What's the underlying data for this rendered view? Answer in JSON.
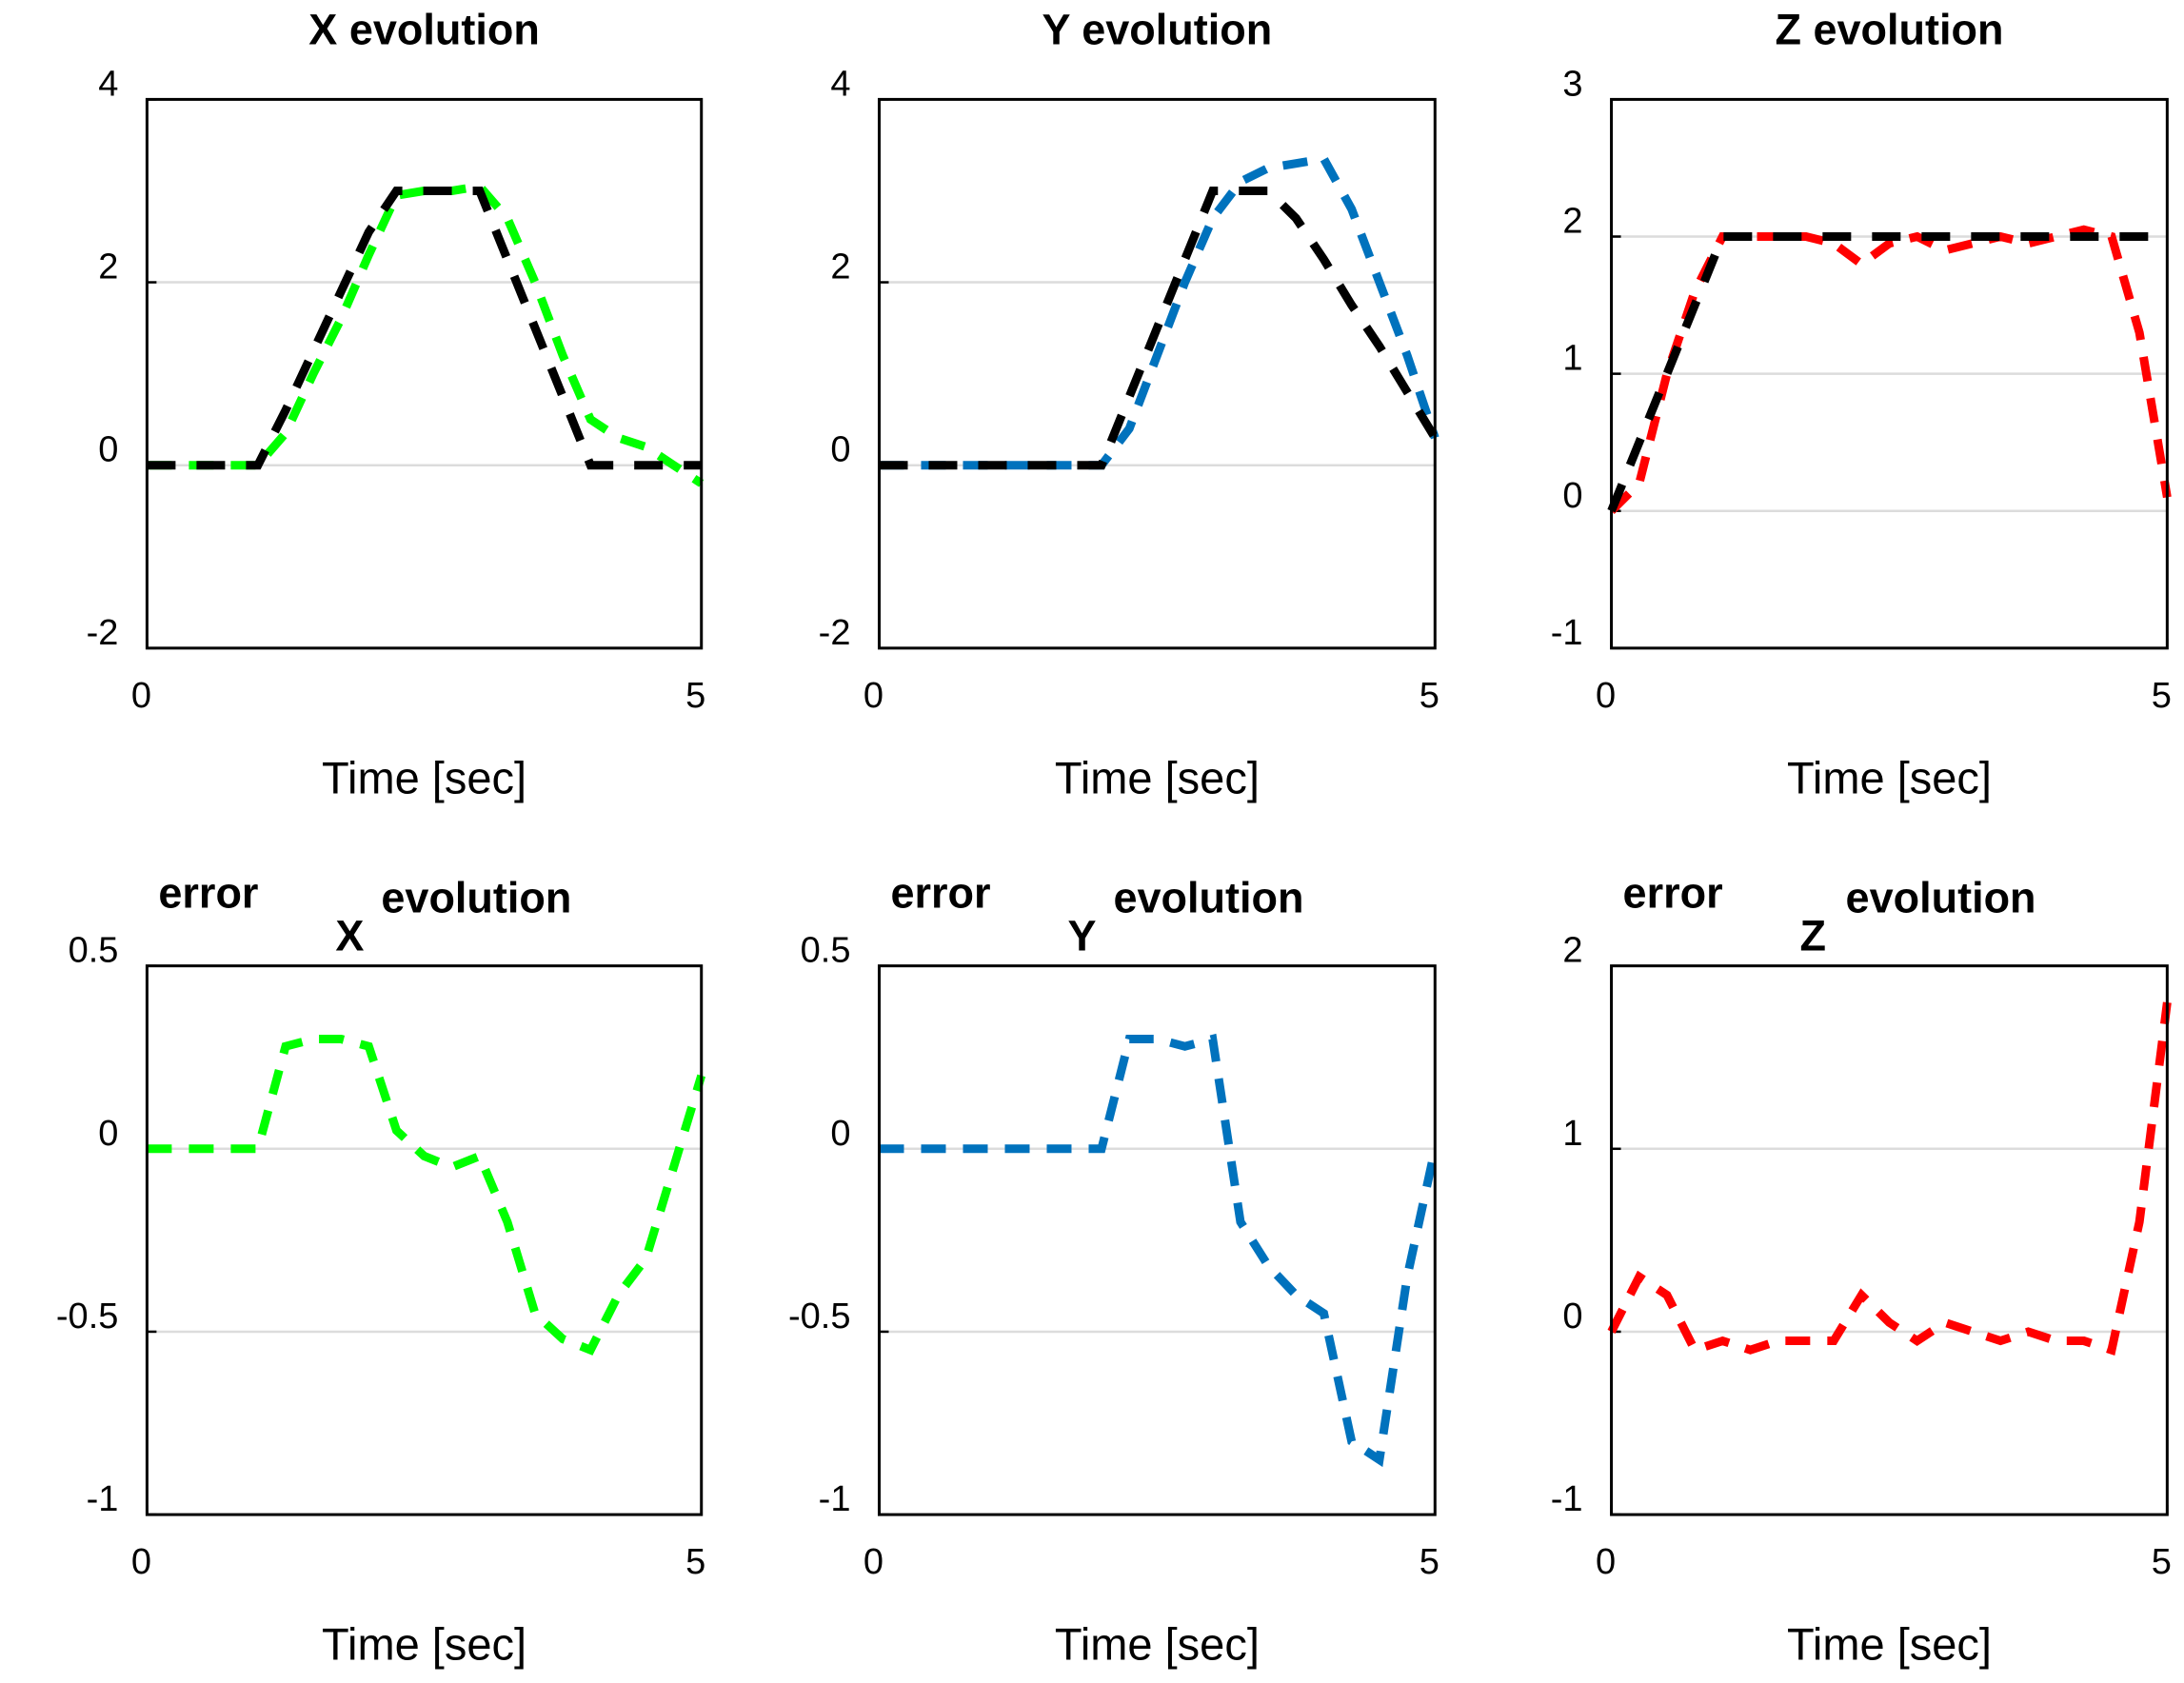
{
  "chart_data": [
    {
      "type": "line",
      "title": "X evolution",
      "xlabel": "Time [sec]",
      "x": [
        0,
        0.25,
        0.5,
        0.75,
        1,
        1.25,
        1.5,
        1.75,
        2,
        2.25,
        2.5,
        2.75,
        3,
        3.25,
        3.5,
        3.75,
        4,
        4.25,
        4.5,
        4.75,
        5
      ],
      "series": [
        {
          "color": "#00ff00",
          "values": [
            0,
            0,
            0,
            0,
            0,
            0.35,
            1.0,
            1.6,
            2.3,
            2.95,
            3.0,
            3.0,
            3.05,
            2.7,
            2.0,
            1.2,
            0.5,
            0.3,
            0.2,
            0,
            -0.2
          ]
        },
        {
          "color": "#000000",
          "values": [
            0,
            0,
            0,
            0,
            0,
            0.6,
            1.25,
            1.9,
            2.55,
            3,
            3,
            3,
            3,
            2.25,
            1.5,
            0.75,
            0,
            0,
            0,
            0,
            0
          ]
        }
      ],
      "xlim": [
        0,
        5
      ],
      "ylim": [
        -2,
        4
      ],
      "xticks": [
        0,
        5
      ],
      "yticks": [
        -2,
        0,
        2,
        4
      ],
      "grid": true
    },
    {
      "type": "line",
      "title": "Y evolution",
      "xlabel": "Time [sec]",
      "x": [
        0,
        0.25,
        0.5,
        0.75,
        1,
        1.25,
        1.5,
        1.75,
        2,
        2.25,
        2.5,
        2.75,
        3,
        3.25,
        3.5,
        3.75,
        4,
        4.25,
        4.5,
        4.75,
        5
      ],
      "series": [
        {
          "color": "#0072bd",
          "values": [
            0,
            0,
            0,
            0,
            0,
            0,
            0,
            0,
            0,
            0.4,
            1.2,
            2.0,
            2.7,
            3.1,
            3.25,
            3.3,
            3.35,
            2.8,
            2.0,
            1.2,
            0.3
          ]
        },
        {
          "color": "#000000",
          "values": [
            0,
            0,
            0,
            0,
            0,
            0,
            0,
            0,
            0,
            0.75,
            1.5,
            2.25,
            3,
            3,
            3,
            2.7,
            2.25,
            1.75,
            1.3,
            0.8,
            0.3
          ]
        }
      ],
      "xlim": [
        0,
        5
      ],
      "ylim": [
        -2,
        4
      ],
      "xticks": [
        0,
        5
      ],
      "yticks": [
        -2,
        0,
        2,
        4
      ],
      "grid": true
    },
    {
      "type": "line",
      "title": "Z evolution",
      "xlabel": "Time [sec]",
      "x": [
        0,
        0.25,
        0.5,
        0.75,
        1,
        1.25,
        1.5,
        1.75,
        2,
        2.25,
        2.5,
        2.75,
        3,
        3.25,
        3.5,
        3.75,
        4,
        4.25,
        4.5,
        4.75,
        5
      ],
      "series": [
        {
          "color": "#ff0000",
          "values": [
            0,
            0.2,
            1.0,
            1.6,
            2.0,
            2.0,
            2.0,
            2.0,
            1.95,
            1.8,
            1.95,
            2.0,
            1.9,
            1.95,
            2.0,
            1.95,
            2.0,
            2.05,
            2.0,
            1.3,
            0.1
          ]
        },
        {
          "color": "#000000",
          "values": [
            0,
            0.5,
            1,
            1.5,
            2,
            2,
            2,
            2,
            2,
            2,
            2,
            2,
            2,
            2,
            2,
            2,
            2,
            2,
            2,
            2,
            2
          ]
        }
      ],
      "xlim": [
        0,
        5
      ],
      "ylim": [
        -1,
        3
      ],
      "xticks": [
        0,
        5
      ],
      "yticks": [
        -1,
        0,
        1,
        2,
        3
      ],
      "grid": true
    },
    {
      "type": "line",
      "title": "error",
      "title_subscript": "X",
      "title_end": "evolution",
      "xlabel": "Time [sec]",
      "x": [
        0,
        0.25,
        0.5,
        0.75,
        1,
        1.25,
        1.5,
        1.75,
        2,
        2.25,
        2.5,
        2.75,
        3,
        3.25,
        3.5,
        3.75,
        4,
        4.25,
        4.5,
        4.75,
        5
      ],
      "series": [
        {
          "color": "#00ff00",
          "values": [
            0,
            0,
            0,
            0,
            0,
            0.28,
            0.3,
            0.3,
            0.28,
            0.05,
            -0.02,
            -0.05,
            -0.02,
            -0.2,
            -0.45,
            -0.52,
            -0.55,
            -0.4,
            -0.3,
            -0.05,
            0.2
          ]
        }
      ],
      "xlim": [
        0,
        5
      ],
      "ylim": [
        -1,
        0.5
      ],
      "xticks": [
        0,
        5
      ],
      "yticks": [
        -1,
        -0.5,
        0,
        0.5
      ],
      "grid": true
    },
    {
      "type": "line",
      "title": "error",
      "title_subscript": "Y",
      "title_end": "evolution",
      "xlabel": "Time [sec]",
      "x": [
        0,
        0.25,
        0.5,
        0.75,
        1,
        1.25,
        1.5,
        1.75,
        2,
        2.25,
        2.5,
        2.75,
        3,
        3.25,
        3.5,
        3.75,
        4,
        4.25,
        4.5,
        4.75,
        5
      ],
      "series": [
        {
          "color": "#0072bd",
          "values": [
            0,
            0,
            0,
            0,
            0,
            0,
            0,
            0,
            0,
            0.3,
            0.3,
            0.28,
            0.3,
            -0.2,
            -0.32,
            -0.4,
            -0.45,
            -0.8,
            -0.85,
            -0.35,
            0
          ]
        }
      ],
      "xlim": [
        0,
        5
      ],
      "ylim": [
        -1,
        0.5
      ],
      "xticks": [
        0,
        5
      ],
      "yticks": [
        -1,
        -0.5,
        0,
        0.5
      ],
      "grid": true
    },
    {
      "type": "line",
      "title": "error",
      "title_subscript": "Z",
      "title_end": "evolution",
      "xlabel": "Time [sec]",
      "x": [
        0,
        0.25,
        0.5,
        0.75,
        1,
        1.25,
        1.5,
        1.75,
        2,
        2.25,
        2.5,
        2.75,
        3,
        3.25,
        3.5,
        3.75,
        4,
        4.25,
        4.5,
        4.75,
        5
      ],
      "series": [
        {
          "color": "#ff0000",
          "values": [
            0,
            0.3,
            0.2,
            -0.1,
            -0.05,
            -0.1,
            -0.05,
            -0.05,
            -0.05,
            0.2,
            0.05,
            -0.05,
            0.05,
            0,
            -0.05,
            0,
            -0.05,
            -0.05,
            -0.1,
            0.6,
            1.8
          ]
        }
      ],
      "xlim": [
        0,
        5
      ],
      "ylim": [
        -1,
        2
      ],
      "xticks": [
        0,
        5
      ],
      "yticks": [
        -1,
        0,
        1,
        2
      ],
      "grid": true
    }
  ]
}
